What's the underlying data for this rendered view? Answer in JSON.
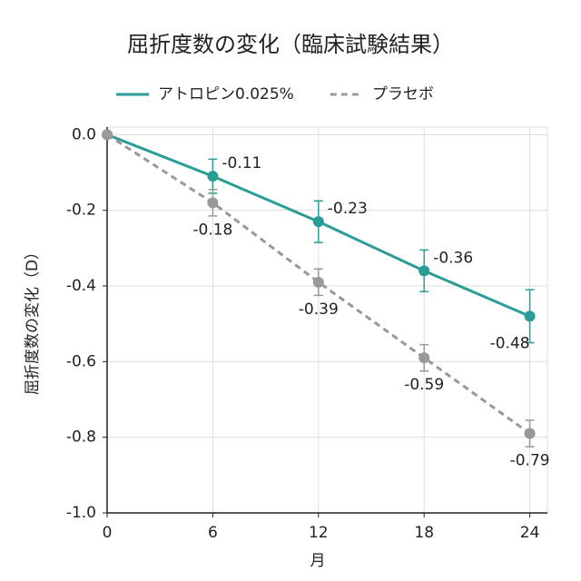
{
  "chart_data": {
    "type": "line",
    "title": "屈折度数の変化（臨床試験結果）",
    "x_label": "月",
    "y_label": "屈折度数の変化（D）",
    "x": [
      0,
      6,
      12,
      18,
      24
    ],
    "series": [
      {
        "name": "アトロピン0.025%",
        "color": "#2a9d96",
        "dash": false,
        "values": [
          0,
          -0.11,
          -0.23,
          -0.36,
          -0.48
        ],
        "errors": [
          null,
          0.045,
          0.055,
          0.055,
          0.07
        ]
      },
      {
        "name": "プラセボ",
        "color": "#999999",
        "dash": true,
        "values": [
          0,
          -0.18,
          -0.39,
          -0.59,
          -0.79
        ],
        "errors": [
          null,
          0.035,
          0.035,
          0.035,
          0.035
        ]
      }
    ],
    "xlim": [
      0,
      25
    ],
    "xticks": [
      0,
      6,
      12,
      18,
      24
    ],
    "ylim": [
      -1,
      0.02
    ],
    "yticks": [
      {
        "value": 0,
        "label": "0.0"
      },
      -0.2,
      -0.4,
      -0.6,
      -0.8,
      {
        "value": -1,
        "label": "-1.0"
      }
    ],
    "grid": true,
    "legend": "top"
  }
}
